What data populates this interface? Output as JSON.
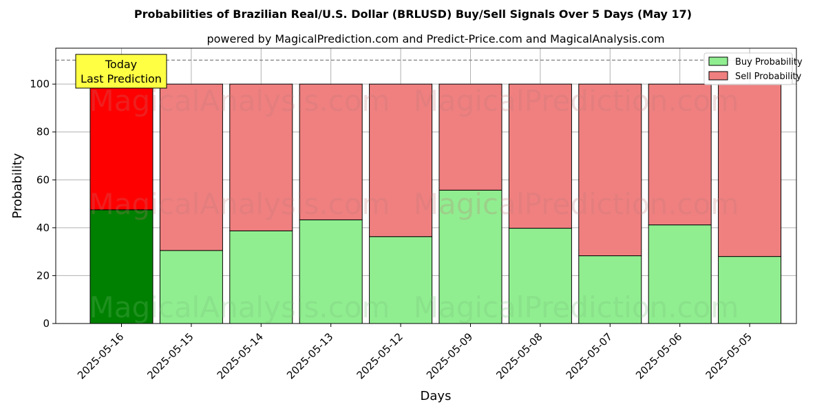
{
  "chart_data": {
    "type": "bar",
    "stacked": true,
    "title": "Probabilities of Brazilian Real/U.S. Dollar (BRLUSD) Buy/Sell Signals Over 5 Days (May 17)",
    "subtitle": "powered by MagicalPrediction.com and Predict-Price.com and MagicalAnalysis.com",
    "xlabel": "Days",
    "ylabel": "Probability",
    "ylim": [
      0,
      115
    ],
    "yticks": [
      0,
      20,
      40,
      60,
      80,
      100
    ],
    "grid": true,
    "legend_position": "top-right",
    "reference_line": 110,
    "categories": [
      "2025-05-16",
      "2025-05-15",
      "2025-05-14",
      "2025-05-13",
      "2025-05-12",
      "2025-05-09",
      "2025-05-08",
      "2025-05-07",
      "2025-05-06",
      "2025-05-05"
    ],
    "series": [
      {
        "name": "Buy Probability",
        "color": "#90ee90",
        "highlight_color": "#008000",
        "values": [
          47.5,
          30.5,
          38.7,
          43.3,
          36.3,
          55.7,
          39.8,
          28.3,
          41.2,
          28.0
        ]
      },
      {
        "name": "Sell Probability",
        "color": "#f08080",
        "highlight_color": "#ff0000",
        "values": [
          52.5,
          69.5,
          61.3,
          56.7,
          63.7,
          44.3,
          60.2,
          71.7,
          58.8,
          72.0
        ]
      }
    ],
    "annotation": {
      "lines": [
        "Today",
        "Last Prediction"
      ],
      "color": "#ffff44"
    },
    "watermarks": [
      "MagicalAnalysis.com",
      "MagicalPrediction.com"
    ]
  }
}
